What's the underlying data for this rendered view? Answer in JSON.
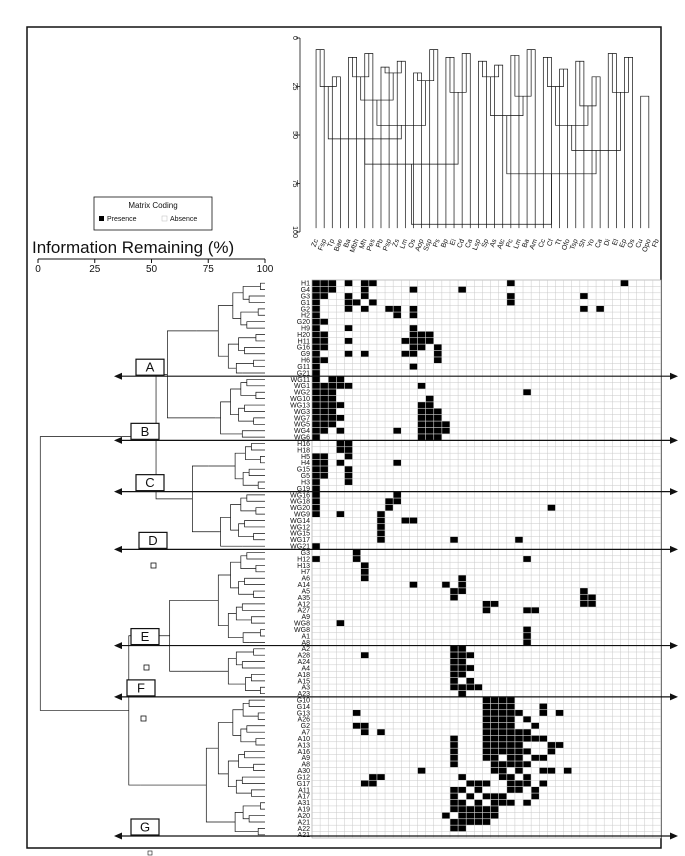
{
  "dendrogram_axis": {
    "title": "Information Remaining (%)",
    "ticks": [
      "0",
      "25",
      "50",
      "75",
      "100"
    ]
  },
  "top_axis": {
    "ticks": [
      "0",
      "25",
      "50",
      "75",
      "100"
    ]
  },
  "legend": {
    "title": "Matrix Coding",
    "presence": "Presence",
    "absence": "Absence"
  },
  "groups": [
    {
      "letter": "A"
    },
    {
      "letter": "B"
    },
    {
      "letter": "C"
    },
    {
      "letter": "D"
    },
    {
      "letter": "E"
    },
    {
      "letter": "F"
    },
    {
      "letter": "G"
    }
  ],
  "column_labels": [
    "Zc",
    "Fsp",
    "Tp",
    "Bae",
    "Ba",
    "Mbh",
    "Mh",
    "Pes",
    "Pb",
    "Psp",
    "Zs",
    "Lm",
    "Os",
    "Aop",
    "Ssp",
    "Ps",
    "Bp",
    "Ei",
    "Cd",
    "Ca",
    "Lsp",
    "Sp",
    "As",
    "Atc",
    "Pc",
    "Lm",
    "Ba",
    "Am",
    "Cc",
    "Cf",
    "Tt",
    "Ofo",
    "Tsp",
    "Sh",
    "Yo",
    "Ca",
    "Di",
    "El",
    "Ep",
    "Os",
    "Cu",
    "Opo",
    "Fb"
  ],
  "row_labels": [
    "H1",
    "G4",
    "G3",
    "G1",
    "G2",
    "H2",
    "G20",
    "H9",
    "H20",
    "H11",
    "G16",
    "G9",
    "H6",
    "G11",
    "G21",
    "WG11",
    "WG1",
    "WG2",
    "WG10",
    "WG13",
    "WG3",
    "WG7",
    "WG5",
    "WG4",
    "WG6",
    "H16",
    "H18",
    "H5",
    "H4",
    "G15",
    "G5",
    "H3",
    "G19",
    "WG16",
    "WG18",
    "WG20",
    "WG9",
    "WG14",
    "WG12",
    "WG15",
    "WG17",
    "WG21",
    "G3",
    "H12",
    "H13",
    "H7",
    "A6",
    "A14",
    "A5",
    "A35",
    "A12",
    "A27",
    "A9",
    "WG8",
    "WG8",
    "A1",
    "A8",
    "A2",
    "A28",
    "A24",
    "A4",
    "A18",
    "A15",
    "A3",
    "A23",
    "G10",
    "G14",
    "G13",
    "A26",
    "G2",
    "A7",
    "A10",
    "A13",
    "A16",
    "A9",
    "A8",
    "A30",
    "G12",
    "G17",
    "A11",
    "A17",
    "A31",
    "A19",
    "A20",
    "A21",
    "A22",
    "A21"
  ]
}
